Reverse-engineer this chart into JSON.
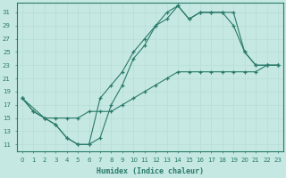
{
  "xlabel": "Humidex (Indice chaleur)",
  "bg_color": "#c5e8e2",
  "grid_color": "#daf0ea",
  "line_color": "#2a7a6a",
  "xlim": [
    -0.5,
    23.5
  ],
  "ylim": [
    10,
    32.5
  ],
  "yticks": [
    11,
    13,
    15,
    17,
    19,
    21,
    23,
    25,
    27,
    29,
    31
  ],
  "xticks": [
    0,
    1,
    2,
    3,
    4,
    5,
    6,
    7,
    8,
    9,
    10,
    11,
    12,
    13,
    14,
    15,
    16,
    17,
    18,
    19,
    20,
    21,
    22,
    23
  ],
  "line1_x": [
    0,
    1,
    2,
    3,
    4,
    5,
    6,
    7,
    8,
    9,
    10,
    11,
    12,
    13,
    14,
    15,
    16,
    17,
    18,
    19,
    20,
    21,
    22,
    23
  ],
  "line1_y": [
    18,
    16,
    15,
    14,
    12,
    11,
    11,
    12,
    17,
    20,
    24,
    26,
    29,
    30,
    32,
    30,
    31,
    31,
    31,
    31,
    25,
    23,
    23,
    23
  ],
  "line2_x": [
    0,
    1,
    2,
    3,
    4,
    5,
    6,
    7,
    8,
    9,
    10,
    11,
    12,
    13,
    14,
    15,
    16,
    17,
    18,
    19,
    20,
    21,
    22,
    23
  ],
  "line2_y": [
    18,
    16,
    15,
    14,
    12,
    11,
    11,
    18,
    20,
    22,
    25,
    27,
    29,
    31,
    32,
    30,
    31,
    31,
    31,
    29,
    25,
    23,
    23,
    23
  ],
  "line3_x": [
    0,
    2,
    3,
    4,
    5,
    6,
    7,
    8,
    9,
    10,
    11,
    12,
    13,
    14,
    15,
    16,
    17,
    18,
    19,
    20,
    21,
    22,
    23
  ],
  "line3_y": [
    18,
    15,
    15,
    15,
    15,
    16,
    16,
    16,
    17,
    18,
    19,
    20,
    21,
    22,
    22,
    22,
    22,
    22,
    22,
    22,
    22,
    23,
    23
  ]
}
